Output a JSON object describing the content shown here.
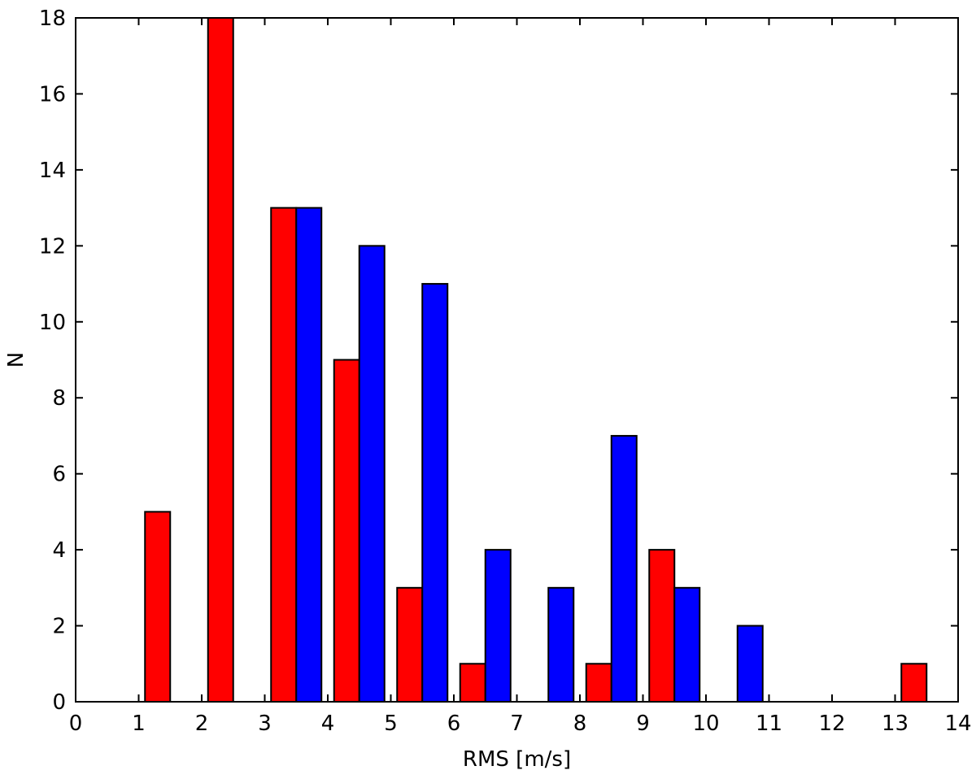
{
  "chart_data": {
    "type": "bar",
    "xlabel": "RMS [m/s]",
    "ylabel": "N",
    "xlim": [
      0,
      14
    ],
    "ylim": [
      0,
      18
    ],
    "xticks": [
      "0",
      "1",
      "2",
      "3",
      "4",
      "5",
      "6",
      "7",
      "8",
      "9",
      "10",
      "11",
      "12",
      "13",
      "14"
    ],
    "yticks": [
      "0",
      "2",
      "4",
      "6",
      "8",
      "10",
      "12",
      "14",
      "16",
      "18"
    ],
    "grid": false,
    "bin_width": 1,
    "bin_starts": [
      0.1,
      1.1,
      2.1,
      3.1,
      4.1,
      5.1,
      6.1,
      7.1,
      8.1,
      9.1,
      10.1,
      11.1,
      12.1,
      13.1
    ],
    "series": [
      {
        "color": "#ff0000",
        "values": [
          0,
          5,
          18,
          13,
          9,
          3,
          1,
          0,
          1,
          4,
          0,
          0,
          0,
          1
        ]
      },
      {
        "color": "#0000ff",
        "values": [
          0,
          0,
          0,
          13,
          12,
          11,
          4,
          3,
          7,
          3,
          2,
          0,
          0,
          0
        ]
      }
    ]
  }
}
